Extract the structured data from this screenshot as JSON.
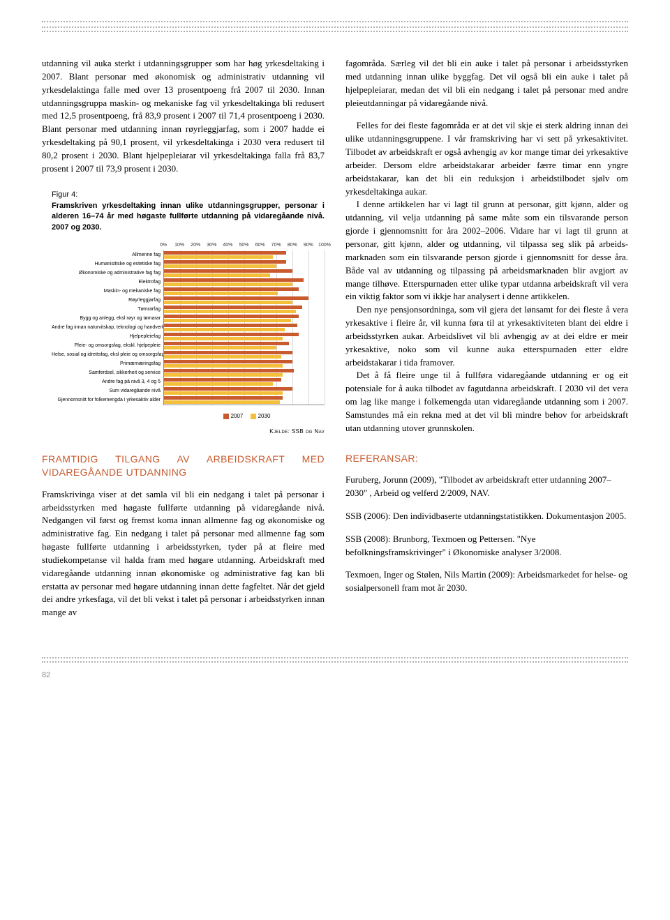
{
  "col1": {
    "para1": "utdanning vil auka sterkt i utdanningsgrupper som har høg yrkesdeltaking i 2007. Blant personar med økonomisk og administrativ utdanning vil yrkesdelaktinga falle med over 13 prosentpoeng frå 2007 til 2030. Innan utdannings­gruppa maskin- og mekaniske fag vil yrkesdeltakinga bli redusert med 12,5 prosentpoeng, frå 83,9 prosent i 2007 til 71,4 prosentpoeng i 2030. Blant personar med utdanning innan røyrleggjarfag, som i 2007 hadde ei yrkesdeltaking på 90,1 prosent, vil yrkesdeltakinga i 2030 vera redusert til 80,2 prosent i 2030. Blant hjelpepleiarar vil yrkes­deltakinga falla frå 83,7 prosent i 2007 til 73,9 prosent i 2030.",
    "section_title": "FRAMTIDIG TILGANG AV ARBEIDSKRAFT MED VIDAREGÅANDE UTDANNING",
    "para2": "Framskrivinga viser at det samla vil bli ein nedgang i talet på personar i arbeidsstyrken med høgaste fullførte utdanning på vidaregåande nivå. Nedgangen vil først og fremst koma innan allmenne fag og økonomiske og admi­nistrative fag. Ein nedgang i talet på personar med allmenne fag som høgaste fullførte utdanning i arbeids­styrken, tyder på at fleire med studiekompetanse vil halda fram med høgare utdanning. Arbeidskraft med vidare­gåande utdanning innan økonomiske og administrative fag kan bli erstatta av personar med høgare utdanning innan dette fagfeltet. Når det gjeld dei andre yrkesfaga, vil det bli vekst i talet på personar i arbeidsstyrken innan mange av"
  },
  "col2": {
    "para1": "fagområda. Særleg vil det bli ein auke i talet på personar i arbeidsstyrken med utdanning innan ulike byggfag. Det vil også bli ein auke i talet på hjelpepleiarar, medan det vil bli ein nedgang i talet på personar med andre pleieutdannin­gar på vidaregåande nivå.",
    "para2": "Felles for dei fleste fagområda er at det vil skje ei sterk aldring innan dei ulike utdanningsgruppene. I vår fram­skriving har vi sett på yrkesaktivitet. Tilbodet av arbeids­kraft er også avhengig av kor mange timar dei yrkesaktive arbeider. Dersom eldre arbeidstakarar arbeider færre timar enn yngre arbeidstakarar, kan det bli ein reduksjon i arbeidstilbodet sjølv om yrkesdeltakinga aukar.",
    "para3": "I denne artikkelen har vi lagt til grunn at personar, gitt kjønn, alder og utdanning, vil velja utdanning på same måte som ein tilsvarande person gjorde i gjennomsnitt for åra 2002–2006. Vidare har vi lagt til grunn at personar, gitt kjønn, alder og utdanning, vil tilpassa seg slik på arbeids­marknaden som ein tilsvarande person gjorde i gjennom­snitt for desse åra. Både val av utdanning og tilpassing på arbeidsmarknaden blir avgjort av mange tilhøve. Etter­spurnaden etter ulike typar utdanna arbeidskraft vil vera ein viktig faktor som vi ikkje har analysert i denne artikkelen.",
    "para4": "Den nye pensjonsordninga, som vil gjera det lønsamt for dei fleste å vera yrkesaktive i fleire år, vil kunna føra til at yrkesaktiviteten blant dei eldre i arbeidsstyrken aukar. Arbeidslivet vil bli avhengig av at dei eldre er meir yrkes­aktive, noko som vil kunne auka etterspurnaden etter eldre arbeidstakarar i tida framover.",
    "para5": "Det å få fleire unge til å fullføra vidaregåande utdanning er og eit potensiale for å auka tilbodet av fagutdanna arbeidskraft. I 2030 vil det vera om lag like mange i folke­mengda utan vidaregåande utdanning som i 2007. Samstundes må ein rekna med at det vil bli mindre behov for arbeidskraft utan utdanning utover grunnskolen.",
    "refs_title": "REFERANSAR:",
    "refs": [
      "Furuberg, Jorunn (2009), \"Tilbodet av arbeidskraft etter utdanning 2007–2030\" , Arbeid og velferd 2/2009, NAV.",
      "SSB (2006): Den individbaserte utdanningstatistikken. Dokumentasjon 2005.",
      "SSB (2008): Brunborg, Texmoen og Pettersen. \"Nye befolkningsframskrivinger\" i Økonomiske analyser 3/2008.",
      "Texmoen, Inger og Stølen, Nils Martin (2009): Arbeids­markedet for helse- og sosialpersonell fram mot år 2030."
    ]
  },
  "figure": {
    "number": "Figur 4:",
    "caption": "Framskriven yrkesdeltaking innan ulike utdanningsgrupper, personar i alderen 16–74 år med høgaste fullførte utdanning på vidaregåande nivå. 2007 og 2030.",
    "x_ticks": [
      "0%",
      "10%",
      "20%",
      "30%",
      "40%",
      "50%",
      "60%",
      "70%",
      "80%",
      "90%",
      "100%"
    ],
    "series_colors": {
      "s2007": "#c85a2e",
      "s2030": "#f4bf3a"
    },
    "legend": {
      "s2007": "2007",
      "s2030": "2030"
    },
    "source": "Kjelde: SSB og Nav",
    "categories": [
      "Allmenne fag",
      "Humanisitiske og estetiske fag",
      "Økonomiske og administrative fag fag",
      "Elektrofag",
      "Maskin- og mekaniske fag",
      "Røyrleggjarfag",
      "Tømrarfag",
      "Bygg og anlegg, eksl røyr og tømarar",
      "Andre fag innan naturvitskap, teknologi og handverk",
      "Hjelpepleiefag",
      "Pleie- og omsorgsfag, ekskl. hjelpepleie",
      "Helse, sosial og idrettsfag, eksl pleie og omsorgsfag",
      "Primærnæringsfag",
      "Samferdsel, sikkerheit og service",
      "Andre fag på nivå 3, 4 og 5",
      "Sum vidaregåande nivå",
      "Gjennomsnitt for folkemengda i yrkesaktiv alder"
    ],
    "values2007": [
      76,
      76,
      80,
      87,
      84,
      90,
      86,
      84,
      83,
      84,
      78,
      80,
      80,
      81,
      73,
      80,
      74
    ],
    "values2030": [
      68,
      70,
      66,
      80,
      71,
      80,
      82,
      79,
      75,
      74,
      70,
      73,
      74,
      74,
      68,
      74,
      72
    ]
  },
  "page_number": "82"
}
